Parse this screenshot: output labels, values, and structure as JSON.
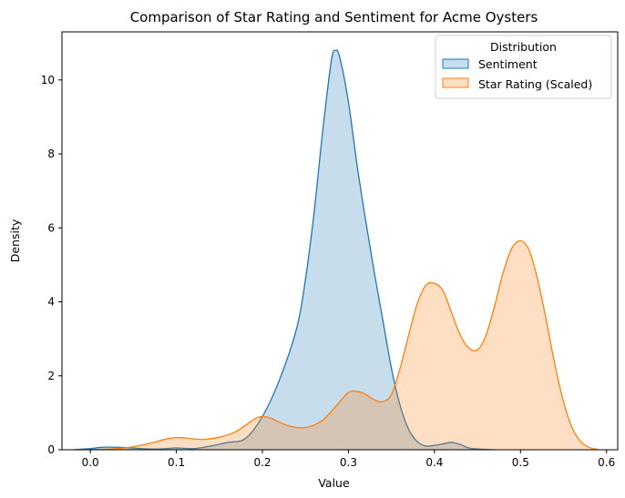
{
  "chart_data": {
    "type": "area",
    "title": "Comparison of Star Rating and Sentiment for Acme Oysters",
    "xlabel": "Value",
    "ylabel": "Density",
    "xlim": [
      -0.033,
      0.613
    ],
    "ylim": [
      0,
      11.3
    ],
    "xticks": [
      0.0,
      0.1,
      0.2,
      0.3,
      0.4,
      0.5,
      0.6
    ],
    "xtick_labels": [
      "0.0",
      "0.1",
      "0.2",
      "0.3",
      "0.4",
      "0.5",
      "0.6"
    ],
    "yticks": [
      0,
      2,
      4,
      6,
      8,
      10
    ],
    "ytick_labels": [
      "0",
      "2",
      "4",
      "6",
      "8",
      "10"
    ],
    "grid": false,
    "legend": {
      "title": "Distribution",
      "placement": "top-right"
    },
    "series": [
      {
        "name": "Sentiment",
        "line_color": "#1f77b4",
        "fill_color": "#1f77b4",
        "fill_opacity": 0.25,
        "x": [
          -0.02,
          0.0,
          0.01,
          0.02,
          0.04,
          0.06,
          0.08,
          0.1,
          0.12,
          0.14,
          0.16,
          0.18,
          0.2,
          0.22,
          0.24,
          0.25,
          0.26,
          0.27,
          0.28,
          0.285,
          0.29,
          0.3,
          0.31,
          0.32,
          0.33,
          0.34,
          0.35,
          0.36,
          0.37,
          0.38,
          0.39,
          0.4,
          0.41,
          0.42,
          0.43,
          0.44,
          0.45,
          0.46,
          0.47
        ],
        "y": [
          0.0,
          0.03,
          0.06,
          0.07,
          0.06,
          0.03,
          0.02,
          0.05,
          0.03,
          0.1,
          0.2,
          0.3,
          0.9,
          1.9,
          3.3,
          4.6,
          6.4,
          8.6,
          10.5,
          10.8,
          10.6,
          9.4,
          7.7,
          6.2,
          4.8,
          3.5,
          2.2,
          1.2,
          0.55,
          0.22,
          0.1,
          0.12,
          0.16,
          0.2,
          0.14,
          0.05,
          0.02,
          0.01,
          0.0
        ]
      },
      {
        "name": "Star Rating (Scaled)",
        "line_color": "#ff7f0e",
        "fill_color": "#ff7f0e",
        "fill_opacity": 0.25,
        "x": [
          0.0,
          0.03,
          0.05,
          0.07,
          0.09,
          0.1,
          0.11,
          0.13,
          0.15,
          0.17,
          0.19,
          0.2,
          0.21,
          0.23,
          0.25,
          0.27,
          0.29,
          0.3,
          0.31,
          0.32,
          0.33,
          0.34,
          0.35,
          0.36,
          0.37,
          0.38,
          0.39,
          0.4,
          0.41,
          0.42,
          0.43,
          0.44,
          0.45,
          0.46,
          0.47,
          0.48,
          0.49,
          0.5,
          0.51,
          0.52,
          0.53,
          0.54,
          0.55,
          0.56,
          0.57,
          0.58,
          0.59
        ],
        "y": [
          0.0,
          0.03,
          0.08,
          0.18,
          0.3,
          0.33,
          0.32,
          0.28,
          0.34,
          0.5,
          0.82,
          0.9,
          0.85,
          0.65,
          0.6,
          0.8,
          1.3,
          1.55,
          1.58,
          1.5,
          1.35,
          1.3,
          1.5,
          2.2,
          3.1,
          3.95,
          4.45,
          4.5,
          4.3,
          3.7,
          3.1,
          2.75,
          2.7,
          3.1,
          3.9,
          4.8,
          5.45,
          5.65,
          5.4,
          4.6,
          3.5,
          2.3,
          1.3,
          0.6,
          0.22,
          0.06,
          0.01
        ]
      }
    ]
  }
}
